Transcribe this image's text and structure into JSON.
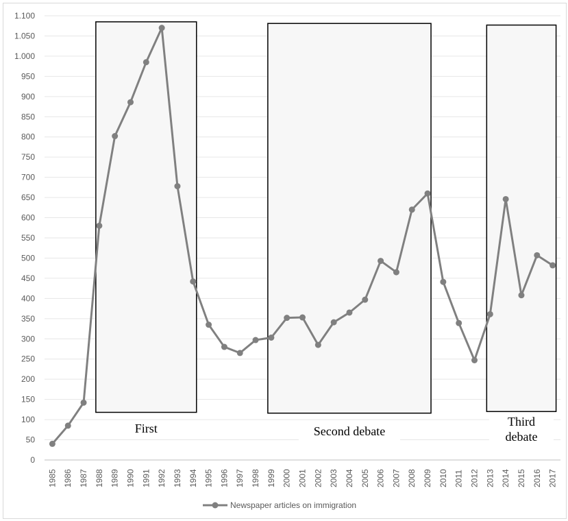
{
  "chart_data": {
    "type": "line",
    "title": "",
    "xlabel": "",
    "ylabel": "",
    "ylim": [
      0,
      1100
    ],
    "yticks": [
      0,
      50,
      100,
      150,
      200,
      250,
      300,
      350,
      400,
      450,
      500,
      550,
      600,
      650,
      700,
      750,
      800,
      850,
      900,
      950,
      1000,
      1050,
      1100
    ],
    "ytick_labels": [
      "0",
      "50",
      "100",
      "150",
      "200",
      "250",
      "300",
      "350",
      "400",
      "450",
      "500",
      "550",
      "600",
      "650",
      "700",
      "750",
      "800",
      "850",
      "900",
      "950",
      "1.000",
      "1.050",
      "1.100"
    ],
    "categories": [
      "1985",
      "1986",
      "1987",
      "1988",
      "1989",
      "1990",
      "1991",
      "1992",
      "1993",
      "1994",
      "1995",
      "1996",
      "1997",
      "1998",
      "1999",
      "2000",
      "2001",
      "2002",
      "2003",
      "2004",
      "2005",
      "2006",
      "2007",
      "2008",
      "2009",
      "2010",
      "2011",
      "2012",
      "2013",
      "2014",
      "2015",
      "2016",
      "2017"
    ],
    "series": [
      {
        "name": "Newspaper articles on immigration",
        "color": "#808080",
        "values": [
          40,
          85,
          142,
          580,
          802,
          886,
          985,
          1070,
          678,
          442,
          335,
          280,
          265,
          297,
          303,
          352,
          353,
          285,
          341,
          365,
          397,
          493,
          465,
          620,
          660,
          441,
          339,
          247,
          361,
          646,
          408,
          507,
          482
        ]
      }
    ],
    "grid": true,
    "legend_position": "bottom",
    "annotations": [
      {
        "label_lines": [
          "First"
        ],
        "from": "1988",
        "to": "1994",
        "ymin": 118,
        "ymax": 1085
      },
      {
        "label_lines": [
          "Second debate"
        ],
        "from": "1999",
        "to": "2009",
        "ymin": 116,
        "ymax": 1081
      },
      {
        "label_lines": [
          "Third",
          "debate"
        ],
        "from": "2013",
        "to": "2017",
        "ymin": 120,
        "ymax": 1077
      }
    ]
  }
}
